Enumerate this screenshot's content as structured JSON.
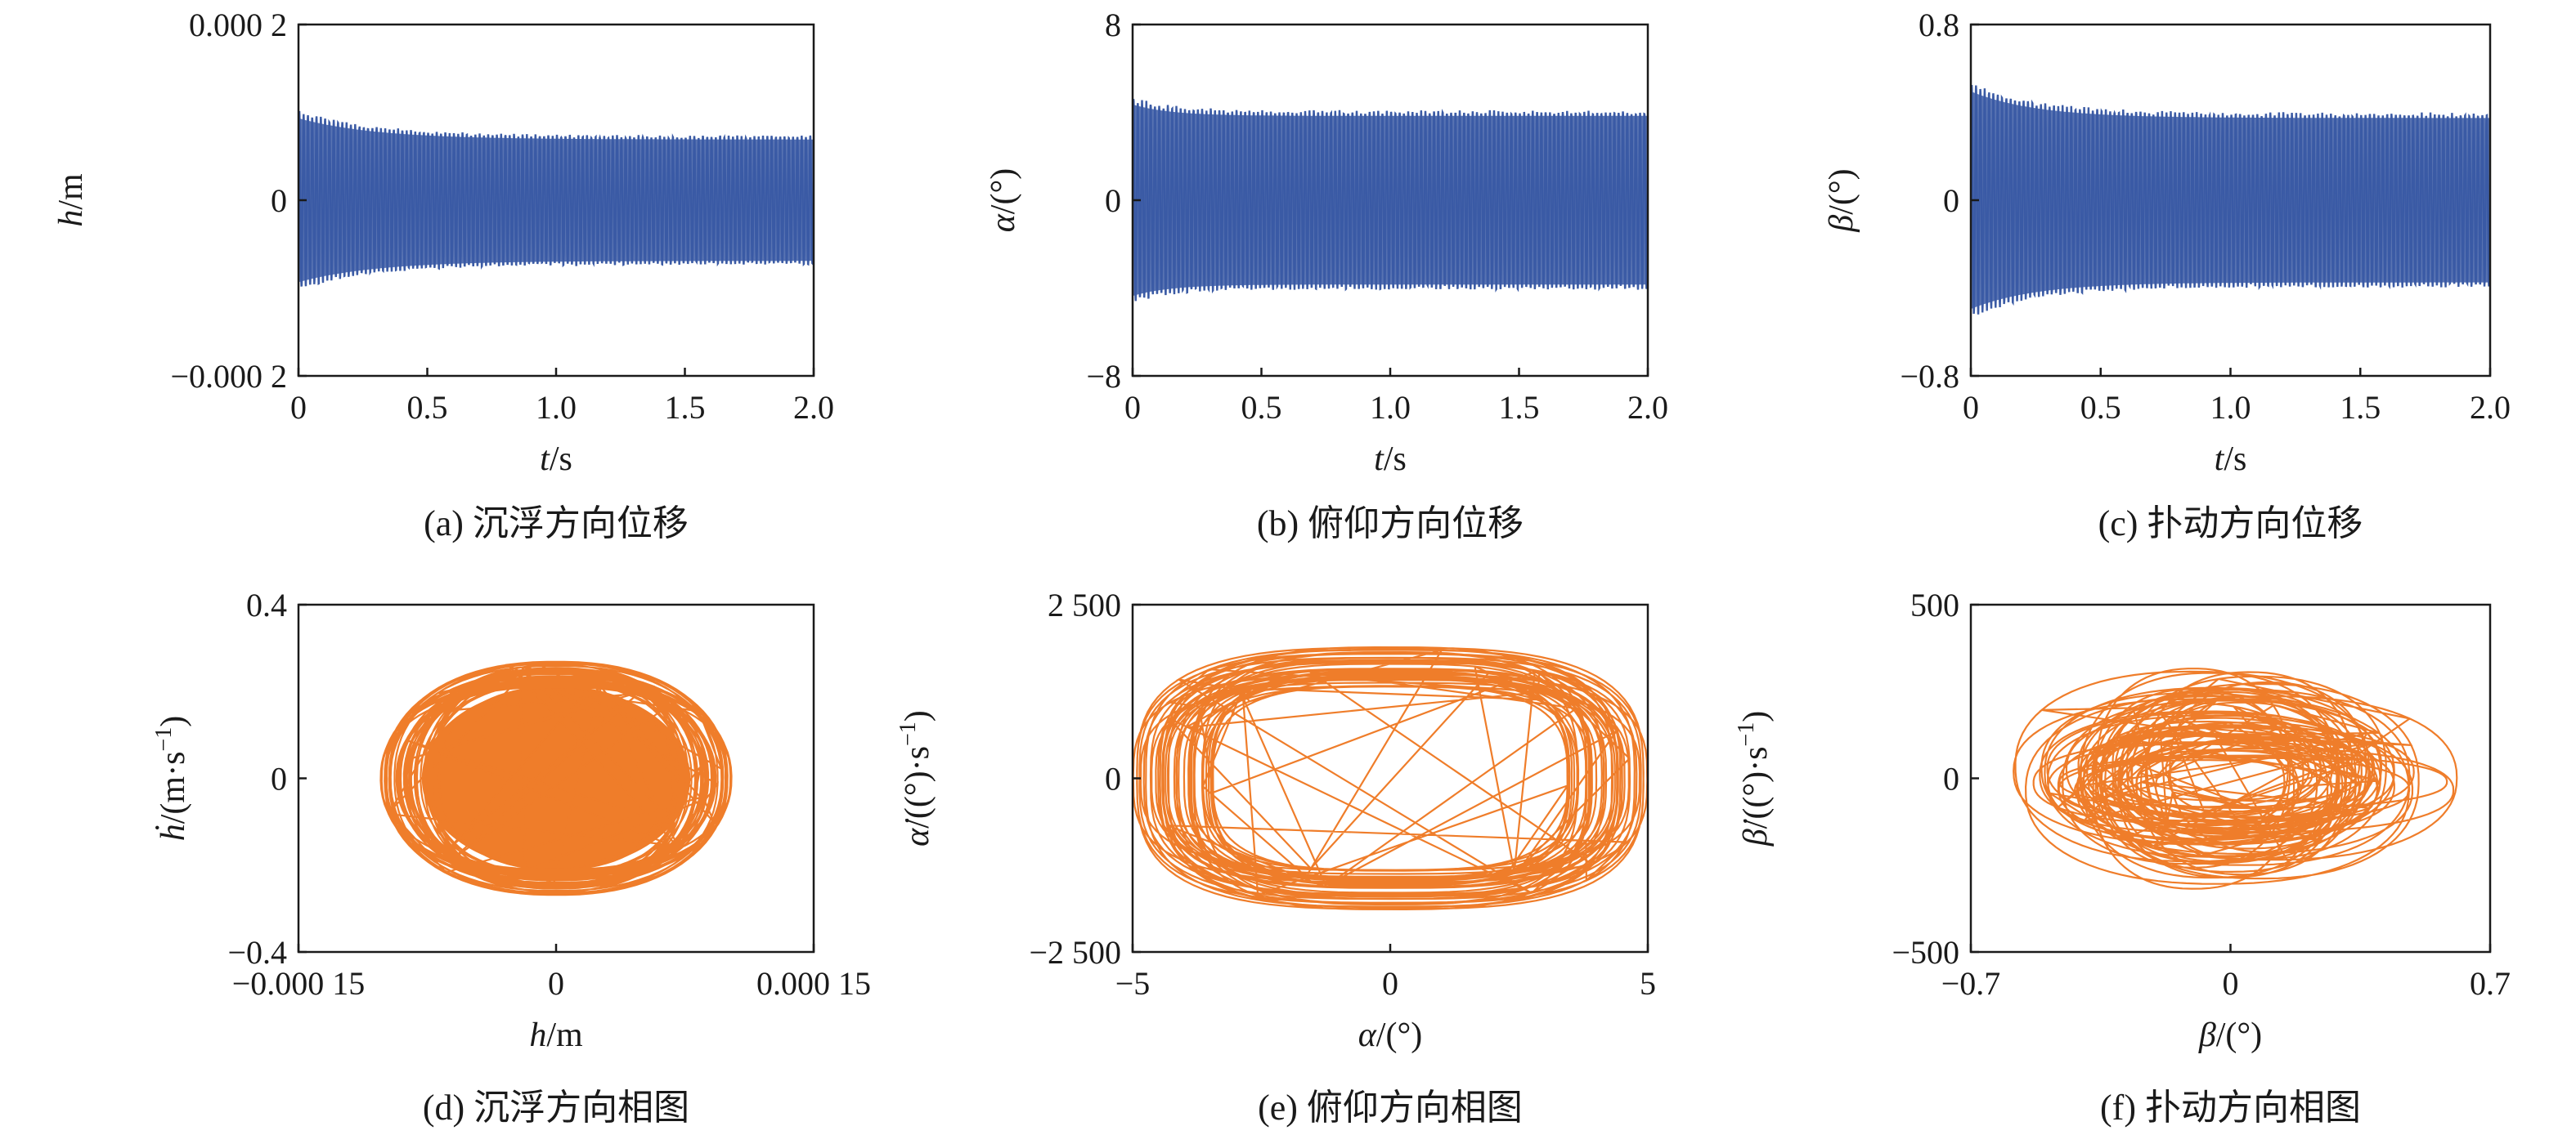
{
  "chart_data": [
    {
      "id": "a",
      "type": "line",
      "caption": "(a) 沉浮方向位移",
      "xlabel_main": "t",
      "xlabel_unit": "/s",
      "ylabel_main": "h",
      "ylabel_unit": "/m",
      "xlim": [
        0,
        2.0
      ],
      "ylim": [
        -0.0002,
        0.0002
      ],
      "xticks": [
        {
          "v": 0,
          "label": "0"
        },
        {
          "v": 0.5,
          "label": "0.5"
        },
        {
          "v": 1.0,
          "label": "1.0"
        },
        {
          "v": 1.5,
          "label": "1.5"
        },
        {
          "v": 2.0,
          "label": "2.0"
        }
      ],
      "yticks": [
        {
          "v": 0.0002,
          "label": "0.000 2"
        },
        {
          "v": 0,
          "label": "0"
        },
        {
          "v": -0.0002,
          "label": "−0.000 2"
        }
      ],
      "color": "#3b5ba5",
      "signal": {
        "steady_amplitude": 7.2e-05,
        "peak_initial": 0.0001,
        "decay_time": 0.3,
        "frequency": 60,
        "duration": 2.0
      }
    },
    {
      "id": "b",
      "type": "line",
      "caption": "(b) 俯仰方向位移",
      "xlabel_main": "t",
      "xlabel_unit": "/s",
      "ylabel_main": "α",
      "ylabel_unit": "/(°)",
      "xlim": [
        0,
        2.0
      ],
      "ylim": [
        -8,
        8
      ],
      "xticks": [
        {
          "v": 0,
          "label": "0"
        },
        {
          "v": 0.5,
          "label": "0.5"
        },
        {
          "v": 1.0,
          "label": "1.0"
        },
        {
          "v": 1.5,
          "label": "1.5"
        },
        {
          "v": 2.0,
          "label": "2.0"
        }
      ],
      "yticks": [
        {
          "v": 8,
          "label": "8"
        },
        {
          "v": 0,
          "label": "0"
        },
        {
          "v": -8,
          "label": "−8"
        }
      ],
      "color": "#3b5ba5",
      "signal": {
        "steady_amplitude": 4.0,
        "peak_initial": 4.6,
        "decay_time": 0.15,
        "frequency": 60,
        "duration": 2.0
      }
    },
    {
      "id": "c",
      "type": "line",
      "caption": "(c) 扑动方向位移",
      "xlabel_main": "t",
      "xlabel_unit": "/s",
      "ylabel_main": "β",
      "ylabel_unit": "/(°)",
      "xlim": [
        0,
        2.0
      ],
      "ylim": [
        -0.8,
        0.8
      ],
      "xticks": [
        {
          "v": 0,
          "label": "0"
        },
        {
          "v": 0.5,
          "label": "0.5"
        },
        {
          "v": 1.0,
          "label": "1.0"
        },
        {
          "v": 1.5,
          "label": "1.5"
        },
        {
          "v": 2.0,
          "label": "2.0"
        }
      ],
      "yticks": [
        {
          "v": 0.8,
          "label": "0.8"
        },
        {
          "v": 0,
          "label": "0"
        },
        {
          "v": -0.8,
          "label": "−0.8"
        }
      ],
      "color": "#3b5ba5",
      "signal": {
        "steady_amplitude": 0.39,
        "peak_initial": 0.53,
        "decay_time": 0.25,
        "frequency": 60,
        "duration": 2.0
      }
    },
    {
      "id": "d",
      "type": "line",
      "caption": "(d) 沉浮方向相图",
      "xlabel_main": "h",
      "xlabel_unit": "/m",
      "ylabel_main": "ḣ",
      "ylabel_unit": "/(m·s",
      "ylabel_sup": "−1",
      "ylabel_tail": ")",
      "xlim": [
        -0.00015,
        0.00015
      ],
      "ylim": [
        -0.4,
        0.4
      ],
      "xticks": [
        {
          "v": -0.00015,
          "label": "−0.000 15"
        },
        {
          "v": 0,
          "label": "0"
        },
        {
          "v": 0.00015,
          "label": "0.000 15"
        }
      ],
      "yticks": [
        {
          "v": 0.4,
          "label": "0.4"
        },
        {
          "v": 0,
          "label": "0"
        },
        {
          "v": -0.4,
          "label": "−0.4"
        }
      ],
      "color": "#ef7d2a",
      "phase": {
        "x_amp": 8.5e-05,
        "y_amp": 0.24,
        "x_spread": 2e-05,
        "y_spread": 0.03,
        "loops": 40
      }
    },
    {
      "id": "e",
      "type": "line",
      "caption": "(e) 俯仰方向相图",
      "xlabel_main": "α",
      "xlabel_unit": "/(°)",
      "ylabel_main": "α̇",
      "ylabel_unit": "/((°)·s",
      "ylabel_sup": "−1",
      "ylabel_tail": ")",
      "xlim": [
        -5,
        5
      ],
      "ylim": [
        -2500,
        2500
      ],
      "xticks": [
        {
          "v": -5,
          "label": "−5"
        },
        {
          "v": 0,
          "label": "0"
        },
        {
          "v": 5,
          "label": "5"
        }
      ],
      "yticks": [
        {
          "v": 2500,
          "label": "2 500"
        },
        {
          "v": 0,
          "label": "0"
        },
        {
          "v": -2500,
          "label": "−2 500"
        }
      ],
      "color": "#ef7d2a",
      "phase": {
        "x_amp": 4.2,
        "y_amp": 1600,
        "x_spread": 0.8,
        "y_spread": 300,
        "loops": 40
      }
    },
    {
      "id": "f",
      "type": "line",
      "caption": "(f) 扑动方向相图",
      "xlabel_main": "β",
      "xlabel_unit": "/(°)",
      "ylabel_main": "β̇",
      "ylabel_unit": "/((°)·s",
      "ylabel_sup": "−1",
      "ylabel_tail": ")",
      "xlim": [
        -0.7,
        0.7
      ],
      "ylim": [
        -500,
        500
      ],
      "xticks": [
        {
          "v": -0.7,
          "label": "−0.7"
        },
        {
          "v": 0,
          "label": "0"
        },
        {
          "v": 0.7,
          "label": "0.7"
        }
      ],
      "yticks": [
        {
          "v": 500,
          "label": "500"
        },
        {
          "v": 0,
          "label": "0"
        },
        {
          "v": -500,
          "label": "−500"
        }
      ],
      "color": "#ef7d2a",
      "phase": {
        "x_amp": 0.38,
        "y_amp": 180,
        "x_spread": 0.15,
        "y_spread": 120,
        "loops": 60,
        "chaotic": true
      }
    }
  ]
}
